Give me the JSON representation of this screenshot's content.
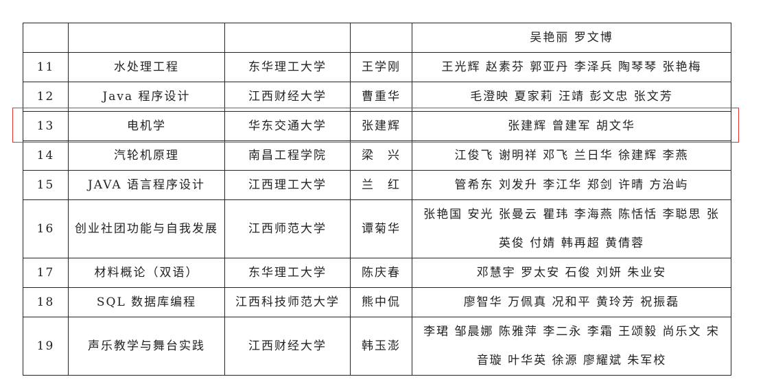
{
  "rows": [
    {
      "no": "",
      "course": "",
      "school": "",
      "leader": "",
      "members": "吴艳丽 罗文博"
    },
    {
      "no": "11",
      "course": "水处理工程",
      "school": "东华理工大学",
      "leader": "王学刚",
      "members": "王光辉 赵素芬 郭亚丹 李泽兵 陶琴琴 张艳梅"
    },
    {
      "no": "12",
      "course": "Java 程序设计",
      "school": "江西财经大学",
      "leader": "曹重华",
      "members": "毛澄映 夏家莉 汪靖 彭文忠 张文芳"
    },
    {
      "no": "13",
      "course": "电机学",
      "school": "华东交通大学",
      "leader": "张建辉",
      "members": "张建辉  曾建军 胡文华"
    },
    {
      "no": "14",
      "course": "汽轮机原理",
      "school": "南昌工程学院",
      "leader": "梁　兴",
      "members": "江俊飞 谢明祥 邓飞 兰日华 徐建辉 李燕"
    },
    {
      "no": "15",
      "course": "JAVA 语言程序设计",
      "school": "江西理工大学",
      "leader": "兰　红",
      "members": "管希东 刘发升 李江华 郑剑 许晴 方治屿"
    },
    {
      "no": "16",
      "course": "创业社团功能与自我发展",
      "school": "江西师范大学",
      "leader": "谭菊华",
      "members": "张艳国 安光 张曼云 瞿玮 李海燕 陈恬恬 李聪思 张英俊 付婧 韩再超 黄倩蓉"
    },
    {
      "no": "17",
      "course": "材料概论（双语）",
      "school": "东华理工大学",
      "leader": "陈庆春",
      "members": "邓慧宇 罗太安 石俊 刘妍 朱业安"
    },
    {
      "no": "18",
      "course": "SQL 数据库编程",
      "school": "江西科技师范大学",
      "leader": "熊中侃",
      "members": "廖智华 万佩真 况和平 黄玲芳 祝振磊"
    },
    {
      "no": "19",
      "course": "声乐教学与舞台实践",
      "school": "江西财经大学",
      "leader": "韩玉澎",
      "members": "李珺 邹晨娜 陈雅萍 李二永 李霜 王颂毅 尚乐文 宋音璇 叶华英 徐源 廖耀斌 朱军校"
    }
  ],
  "highlight_color": "#e53030"
}
